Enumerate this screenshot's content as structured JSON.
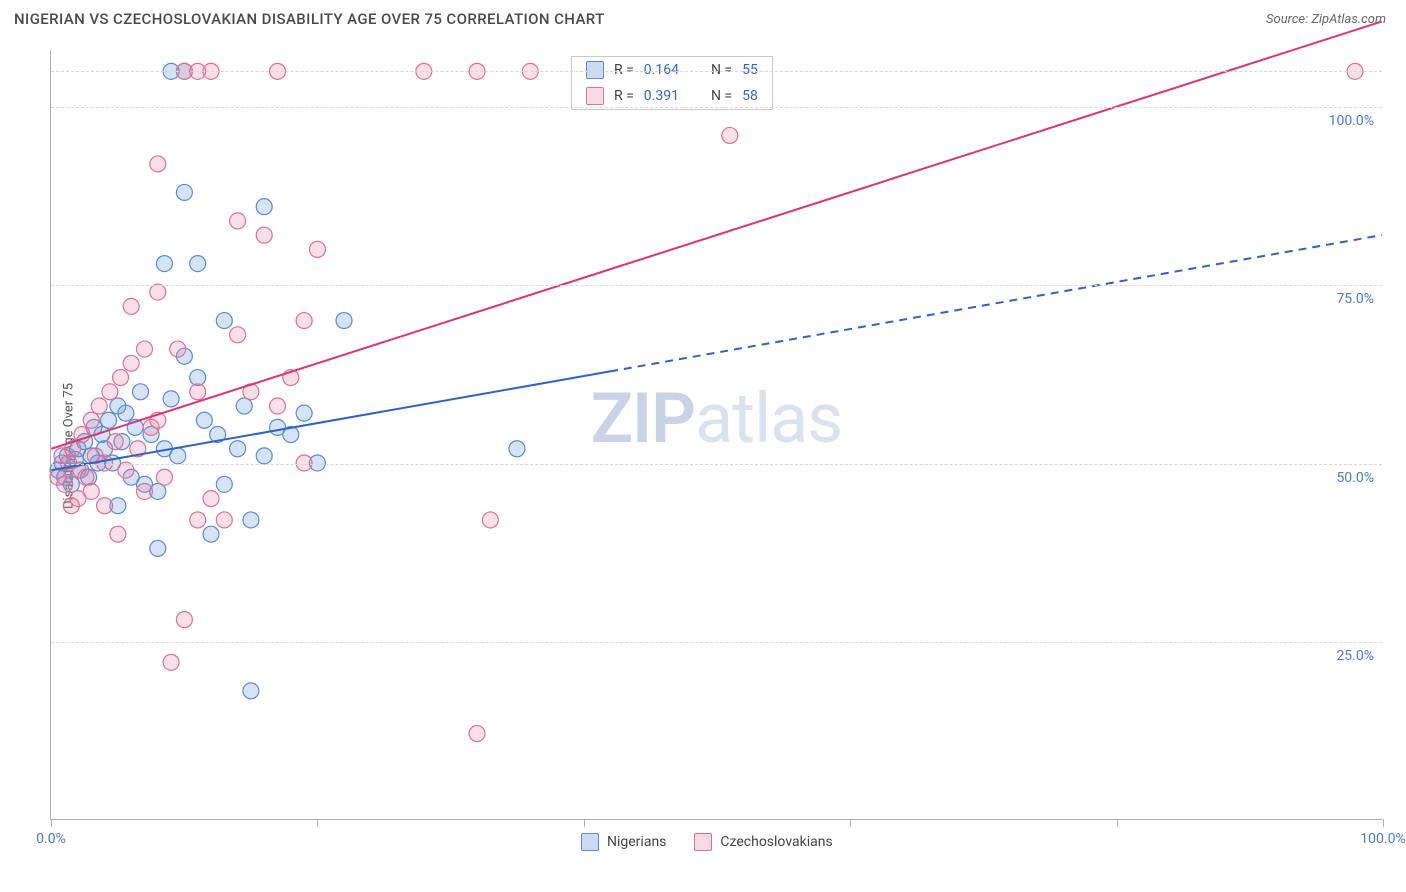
{
  "header": {
    "title": "NIGERIAN VS CZECHOSLOVAKIAN DISABILITY AGE OVER 75 CORRELATION CHART",
    "source_prefix": "Source: ",
    "source_name": "ZipAtlas.com"
  },
  "ylabel": "Disability Age Over 75",
  "watermark": {
    "bold": "ZIP",
    "rest": "atlas"
  },
  "chart": {
    "type": "scatter-with-trend",
    "xlim": [
      0,
      100
    ],
    "ylim": [
      0,
      108
    ],
    "x_ticks": [
      0,
      20,
      40,
      60,
      80,
      100
    ],
    "x_tick_labels": {
      "0": "0.0%",
      "100": "100.0%"
    },
    "y_gridlines": [
      25,
      50,
      75,
      100,
      105
    ],
    "y_tick_labels": {
      "25": "25.0%",
      "50": "50.0%",
      "75": "75.0%",
      "100": "100.0%"
    },
    "grid_color": "#d8d8d8",
    "axis_color": "#b0b0b0",
    "tick_label_color": "#4a7bd6",
    "background": "#ffffff",
    "series": [
      {
        "name": "Nigerians",
        "color_fill": "rgba(108,153,222,0.28)",
        "color_stroke": "#5a8bd4",
        "marker_radius": 8,
        "R": "0.164",
        "N": "55",
        "trend": {
          "y_at_x0": 49,
          "y_at_x100": 82,
          "solid_until_x": 42,
          "color": "#2f63c4",
          "width": 2
        },
        "points": [
          [
            0.5,
            49
          ],
          [
            0.8,
            50
          ],
          [
            1,
            48
          ],
          [
            1.2,
            51
          ],
          [
            1.5,
            47
          ],
          [
            1.8,
            50.5
          ],
          [
            2,
            52
          ],
          [
            2.2,
            49
          ],
          [
            2.5,
            53
          ],
          [
            2.8,
            48
          ],
          [
            3,
            51
          ],
          [
            3.2,
            55
          ],
          [
            3.5,
            50
          ],
          [
            3.8,
            54
          ],
          [
            4,
            52
          ],
          [
            4.3,
            56
          ],
          [
            4.6,
            50
          ],
          [
            5,
            58
          ],
          [
            5.3,
            53
          ],
          [
            5.6,
            57
          ],
          [
            6,
            48
          ],
          [
            6.3,
            55
          ],
          [
            6.7,
            60
          ],
          [
            7,
            47
          ],
          [
            7.5,
            54
          ],
          [
            8,
            46
          ],
          [
            8.5,
            52
          ],
          [
            9,
            59
          ],
          [
            9.5,
            51
          ],
          [
            10,
            65
          ],
          [
            10,
            88
          ],
          [
            11,
            62
          ],
          [
            11,
            78
          ],
          [
            11.5,
            56
          ],
          [
            12,
            40
          ],
          [
            12.5,
            54
          ],
          [
            13,
            47
          ],
          [
            13,
            70
          ],
          [
            14,
            52
          ],
          [
            14.5,
            58
          ],
          [
            15,
            18
          ],
          [
            15,
            42
          ],
          [
            16,
            51
          ],
          [
            16,
            86
          ],
          [
            17,
            55
          ],
          [
            8,
            38
          ],
          [
            9,
            105
          ],
          [
            18,
            54
          ],
          [
            19,
            57
          ],
          [
            20,
            50
          ],
          [
            10,
            105
          ],
          [
            22,
            70
          ],
          [
            35,
            52
          ],
          [
            8.5,
            78
          ],
          [
            5,
            44
          ]
        ]
      },
      {
        "name": "Czechoslovakians",
        "color_fill": "rgba(231,132,164,0.25)",
        "color_stroke": "#df6f96",
        "marker_radius": 8,
        "R": "0.391",
        "N": "58",
        "trend": {
          "y_at_x0": 52,
          "y_at_x100": 112,
          "solid_until_x": 100,
          "color": "#e0356b",
          "width": 2
        },
        "points": [
          [
            0.5,
            48
          ],
          [
            0.8,
            51
          ],
          [
            1,
            47
          ],
          [
            1.3,
            50
          ],
          [
            1.6,
            52
          ],
          [
            2,
            49
          ],
          [
            2.3,
            54
          ],
          [
            2.6,
            48
          ],
          [
            3,
            56
          ],
          [
            3.3,
            51
          ],
          [
            3.6,
            58
          ],
          [
            4,
            50
          ],
          [
            4.4,
            60
          ],
          [
            4.8,
            53
          ],
          [
            5.2,
            62
          ],
          [
            5.6,
            49
          ],
          [
            6,
            64
          ],
          [
            6.5,
            52
          ],
          [
            7,
            66
          ],
          [
            7.5,
            55
          ],
          [
            8,
            74
          ],
          [
            10,
            105
          ],
          [
            11,
            105
          ],
          [
            12,
            105
          ],
          [
            14,
            68
          ],
          [
            14,
            84
          ],
          [
            15,
            60
          ],
          [
            16,
            82
          ],
          [
            17,
            58
          ],
          [
            17,
            105
          ],
          [
            18,
            62
          ],
          [
            19,
            50
          ],
          [
            20,
            80
          ],
          [
            8,
            92
          ],
          [
            9,
            22
          ],
          [
            10,
            28
          ],
          [
            11,
            42
          ],
          [
            12,
            45
          ],
          [
            13,
            42
          ],
          [
            6,
            72
          ],
          [
            5,
            40
          ],
          [
            4,
            44
          ],
          [
            28,
            105
          ],
          [
            32,
            105
          ],
          [
            32,
            12
          ],
          [
            33,
            42
          ],
          [
            36,
            105
          ],
          [
            98,
            105
          ],
          [
            19,
            70
          ],
          [
            7,
            46
          ],
          [
            3,
            46
          ],
          [
            2,
            45
          ],
          [
            1.5,
            44
          ],
          [
            8,
            56
          ],
          [
            9.5,
            66
          ],
          [
            11,
            60
          ],
          [
            8.5,
            48
          ],
          [
            51,
            96
          ]
        ]
      }
    ]
  },
  "legend_top": {
    "rows": [
      {
        "swatch": "blue",
        "r_label": "R =",
        "r_val": "0.164",
        "n_label": "N =",
        "n_val": "55"
      },
      {
        "swatch": "pink",
        "r_label": "R =",
        "r_val": "0.391",
        "n_label": "N =",
        "n_val": "58"
      }
    ]
  },
  "legend_bottom": {
    "items": [
      {
        "swatch": "blue",
        "label": "Nigerians"
      },
      {
        "swatch": "pink",
        "label": "Czechoslovakians"
      }
    ]
  }
}
